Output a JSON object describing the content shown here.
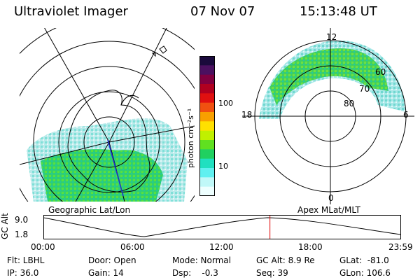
{
  "header": {
    "title": "Ultraviolet Imager",
    "date": "07 Nov 07",
    "time": "15:13:48 UT"
  },
  "left_panel": {
    "caption": "Geographic Lat/Lon"
  },
  "right_panel": {
    "caption": "Apex  MLat/MLT",
    "mlt_labels": {
      "top": "12",
      "left": "18",
      "right": "6",
      "bottom": "0"
    },
    "lat_labels": [
      "60",
      "70",
      "80"
    ]
  },
  "colorbar": {
    "unit_label": "photon cm⁻²s⁻¹",
    "ticks": [
      "100",
      "10"
    ],
    "colors": [
      "#1a0a3c",
      "#4b1060",
      "#800040",
      "#b00020",
      "#e01010",
      "#f05010",
      "#f8a000",
      "#ffe000",
      "#c0f000",
      "#60e020",
      "#20d060",
      "#20e0c0",
      "#60f0f0",
      "#c0f8f8",
      "#eeffff"
    ]
  },
  "altitude_plot": {
    "ylabel": "GC Alt",
    "yticks": [
      "9.0",
      "1.8"
    ],
    "xticks": [
      "00:00",
      "06:00",
      "12:00",
      "18:00",
      "23:59"
    ],
    "marker_time_fraction": 0.6346,
    "marker_color": "#e00000"
  },
  "status": {
    "flt": "Flt: LBHL",
    "ip": "IP: 36.0",
    "door": "Door: Open",
    "gain": "Gain: 14",
    "mode": "Mode: Normal",
    "dsp": "Dsp:    -0.3",
    "gc_alt": "GC Alt: 8.9 Re",
    "seq": "Seq: 39",
    "glat": "GLat:  -81.0",
    "glon": "GLon: 106.6"
  }
}
